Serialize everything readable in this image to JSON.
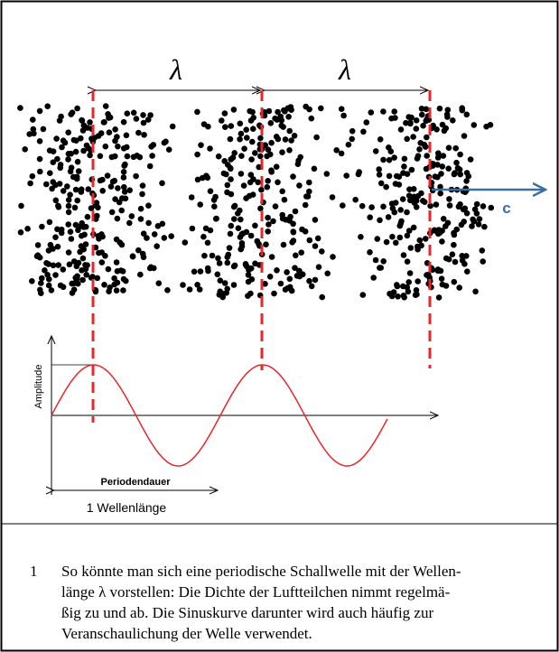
{
  "figure": {
    "wavelength_labels": [
      "λ",
      "λ"
    ],
    "speed_label": "c",
    "y_axis_label": "Amplitude",
    "period_label": "Periodendauer",
    "wavelength_caption": "1 Wellenlänge"
  },
  "caption": {
    "number": "1",
    "lines": [
      "So könnte man sich eine periodische Schallwelle mit der Wellen-",
      "länge λ vorstellen: Die Dichte der Luftteilchen nimmt regelmä-",
      "ßig zu und ab. Die Sinuskurve darunter wird auch häufig zur",
      "Veranschaulichung der Welle verwendet."
    ]
  }
}
